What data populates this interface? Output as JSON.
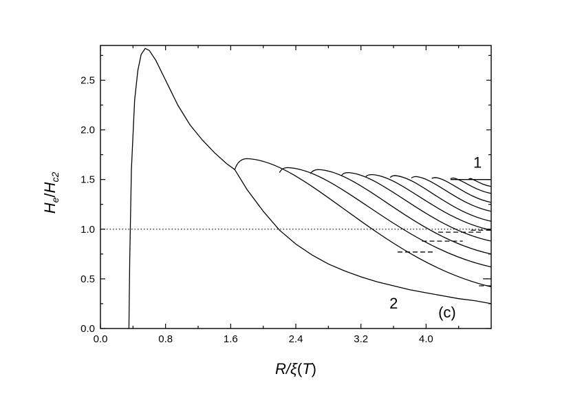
{
  "chart_data": {
    "type": "line",
    "xlabel": {
      "main": "R/",
      "xi": "ξ",
      "open": "(",
      "T": "T",
      "close": ")"
    },
    "ylabel": {
      "H1": "H",
      "e": "e",
      "slash": "/",
      "H2": "H",
      "c2": "c2"
    },
    "xlim": [
      0.0,
      4.8
    ],
    "ylim": [
      0.0,
      2.85
    ],
    "x_ticks": [
      0.0,
      0.8,
      1.6,
      2.4,
      3.2,
      4.0
    ],
    "x_tick_labels": [
      "0.0",
      "0.8",
      "1.6",
      "2.4",
      "3.2",
      "4.0"
    ],
    "y_ticks": [
      0.0,
      0.5,
      1.0,
      1.5,
      2.0,
      2.5
    ],
    "y_tick_labels": [
      "0.0",
      "0.5",
      "1.0",
      "1.5",
      "2.0",
      "2.5"
    ],
    "grid": false,
    "reference_line": {
      "y": 1.0,
      "style": "dotted"
    },
    "main_curve": {
      "x": [
        0.35,
        0.36,
        0.38,
        0.42,
        0.46,
        0.5,
        0.55,
        0.6,
        0.68,
        0.8,
        0.95,
        1.1,
        1.25,
        1.4,
        1.55,
        1.65
      ],
      "y": [
        0.0,
        0.7,
        1.6,
        2.3,
        2.6,
        2.76,
        2.82,
        2.8,
        2.7,
        2.5,
        2.25,
        2.05,
        1.9,
        1.77,
        1.66,
        1.6
      ]
    },
    "lower_envelope": {
      "x": [
        1.65,
        1.8,
        2.0,
        2.2,
        2.4,
        2.6,
        2.8,
        3.0,
        3.2,
        3.4,
        3.6,
        3.8,
        4.0,
        4.2,
        4.4,
        4.6,
        4.8
      ],
      "y": [
        1.6,
        1.4,
        1.18,
        0.99,
        0.85,
        0.74,
        0.65,
        0.58,
        0.52,
        0.47,
        0.43,
        0.39,
        0.36,
        0.33,
        0.3,
        0.28,
        0.25
      ]
    },
    "branches": [
      {
        "start": [
          1.65,
          1.6
        ],
        "peak": [
          1.8,
          1.71
        ],
        "end": [
          4.8,
          0.42
        ]
      },
      {
        "start": [
          2.2,
          1.57
        ],
        "peak": [
          2.3,
          1.62
        ],
        "end": [
          4.8,
          0.62
        ]
      },
      {
        "start": [
          2.58,
          1.56
        ],
        "peak": [
          2.68,
          1.6
        ],
        "end": [
          4.8,
          0.75
        ]
      },
      {
        "start": [
          2.96,
          1.54
        ],
        "peak": [
          3.04,
          1.57
        ],
        "end": [
          4.8,
          0.88
        ]
      },
      {
        "start": [
          3.26,
          1.53
        ],
        "peak": [
          3.34,
          1.55
        ],
        "end": [
          4.8,
          0.99
        ]
      },
      {
        "start": [
          3.56,
          1.52
        ],
        "peak": [
          3.62,
          1.54
        ],
        "end": [
          4.8,
          1.08
        ]
      },
      {
        "start": [
          3.82,
          1.515
        ],
        "peak": [
          3.88,
          1.53
        ],
        "end": [
          4.8,
          1.18
        ]
      },
      {
        "start": [
          4.07,
          1.51
        ],
        "peak": [
          4.12,
          1.52
        ],
        "end": [
          4.8,
          1.27
        ]
      },
      {
        "start": [
          4.3,
          1.505
        ],
        "peak": [
          4.34,
          1.515
        ],
        "end": [
          4.8,
          1.36
        ]
      },
      {
        "start": [
          4.52,
          1.5
        ],
        "peak": [
          4.55,
          1.51
        ],
        "end": [
          4.8,
          1.43
        ]
      }
    ],
    "upper_line": {
      "x": [
        4.3,
        4.8
      ],
      "y": [
        1.5,
        1.5
      ]
    },
    "dashed_segments": [
      {
        "x": [
          3.65,
          4.1
        ],
        "y": [
          0.77,
          0.77
        ]
      },
      {
        "x": [
          3.95,
          4.45
        ],
        "y": [
          0.88,
          0.88
        ]
      },
      {
        "x": [
          4.15,
          4.7
        ],
        "y": [
          0.97,
          0.97
        ]
      },
      {
        "x": [
          4.55,
          4.8
        ],
        "y": [
          0.99,
          0.99
        ]
      },
      {
        "x": [
          4.65,
          4.8
        ],
        "y": [
          0.43,
          0.43
        ]
      },
      {
        "x": [
          4.7,
          4.8
        ],
        "y": [
          0.5,
          0.5
        ]
      }
    ],
    "annotations": [
      {
        "text": "1",
        "x": 4.58,
        "y": 1.62
      },
      {
        "text": "2",
        "x": 3.55,
        "y": 0.2
      },
      {
        "text": "(c)",
        "x": 4.15,
        "y": 0.11
      }
    ]
  }
}
